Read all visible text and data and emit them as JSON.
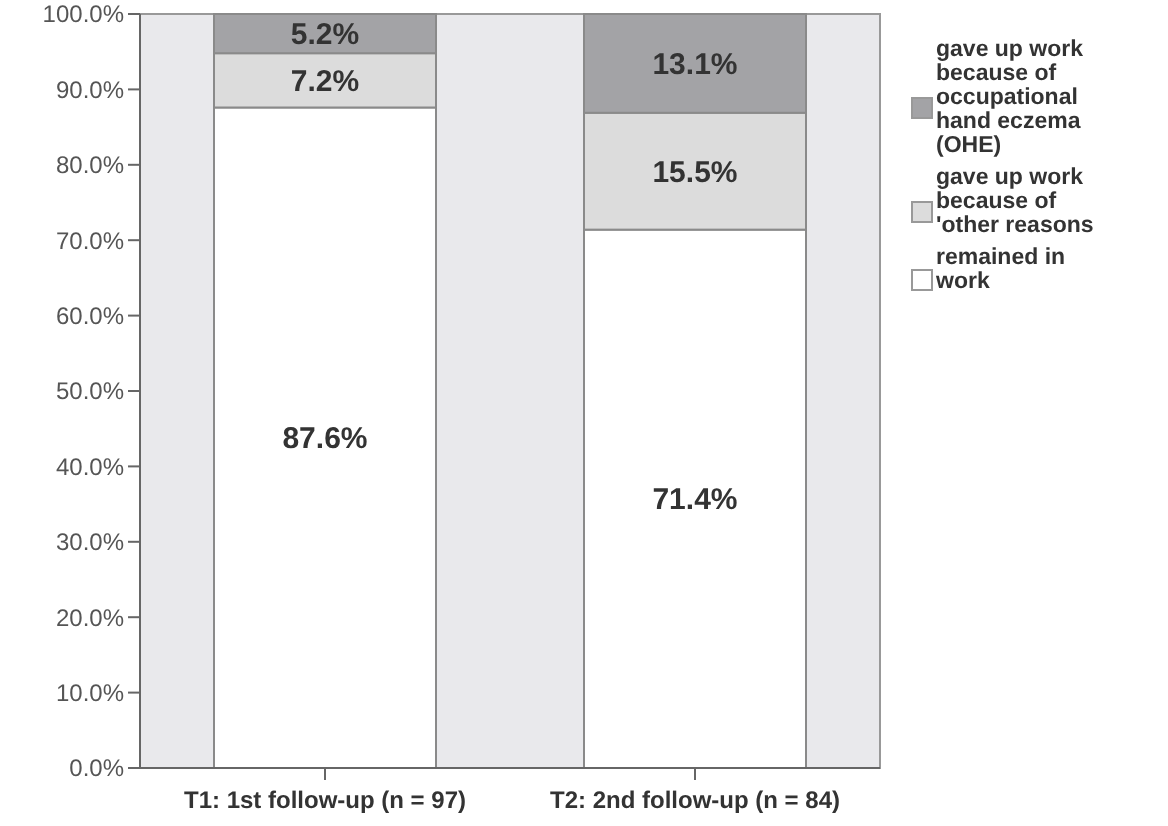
{
  "chart_data": {
    "type": "bar",
    "stacked": true,
    "categories": [
      "T1: 1st follow-up (n =  97)",
      "T2: 2nd follow-up (n = 84)"
    ],
    "series": [
      {
        "name": "remained in work",
        "color": "#ffffff",
        "values": [
          87.6,
          71.4
        ],
        "value_labels": [
          "87.6%",
          "71.4%"
        ]
      },
      {
        "name": "gave up work because of 'other reasons",
        "color": "#dcdcdc",
        "values": [
          7.2,
          15.5
        ],
        "value_labels": [
          "7.2%",
          "15.5%"
        ]
      },
      {
        "name": "gave up work because of occupational hand eczema (OHE)",
        "color": "#a3a3a6",
        "values": [
          5.2,
          13.1
        ],
        "value_labels": [
          "5.2%",
          "13.1%"
        ]
      }
    ],
    "ylim": [
      0,
      100
    ],
    "yticks": [
      {
        "value": 0,
        "label": "0.0%"
      },
      {
        "value": 10,
        "label": "10.0%"
      },
      {
        "value": 20,
        "label": "20.0%"
      },
      {
        "value": 30,
        "label": "30.0%"
      },
      {
        "value": 40,
        "label": "40.0%"
      },
      {
        "value": 50,
        "label": "50.0%"
      },
      {
        "value": 60,
        "label": "60.0%"
      },
      {
        "value": 70,
        "label": "70.0%"
      },
      {
        "value": 80,
        "label": "80.0%"
      },
      {
        "value": 90,
        "label": "90.0%"
      },
      {
        "value": 100,
        "label": "100.0%"
      }
    ],
    "legend": "right"
  }
}
